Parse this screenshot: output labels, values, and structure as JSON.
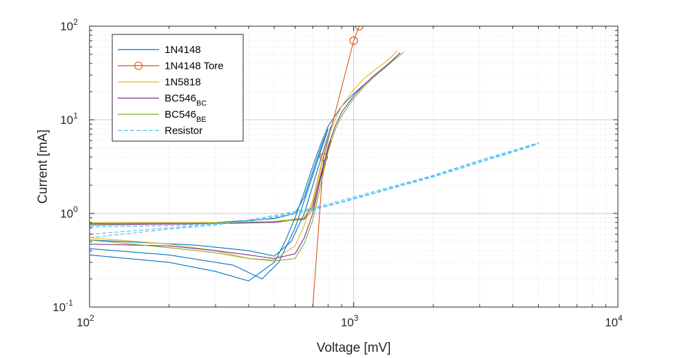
{
  "chart_data": {
    "type": "line",
    "xlabel": "Voltage [mV]",
    "ylabel": "Current [mA]",
    "xscale": "log",
    "yscale": "log",
    "xlim": [
      100,
      10000
    ],
    "ylim": [
      0.1,
      100
    ],
    "grid": "major and minor, dotted",
    "legend_position": "top-left",
    "x_ticks": [
      {
        "base": "10",
        "exp": "2"
      },
      {
        "base": "10",
        "exp": "3"
      },
      {
        "base": "10",
        "exp": "4"
      }
    ],
    "y_ticks": [
      {
        "base": "10",
        "exp": "-1"
      },
      {
        "base": "10",
        "exp": "0"
      },
      {
        "base": "10",
        "exp": "1"
      },
      {
        "base": "10",
        "exp": "2"
      }
    ],
    "series": [
      {
        "name": "1N4148",
        "label_main": "1N4148",
        "label_sub": "",
        "color": "#0072BD",
        "style": "solid",
        "marker": "none",
        "x": [
          100,
          200,
          300,
          400,
          500,
          550,
          600,
          650,
          700,
          750,
          800,
          900,
          1000,
          1100,
          1200,
          1300,
          1400,
          1500
        ],
        "y": [
          0.36,
          0.3,
          0.24,
          0.19,
          0.3,
          0.5,
          0.9,
          1.7,
          3.2,
          5.5,
          8.5,
          14,
          19,
          24,
          30,
          36,
          43,
          52
        ]
      },
      {
        "name": "1N4148 Tore",
        "label_main": "1N4148 Tore",
        "label_sub": "",
        "color": "#D95319",
        "style": "solid",
        "marker": "circle",
        "x": [
          700,
          770,
          1000,
          1050
        ],
        "y": [
          0.1,
          4,
          70,
          100
        ]
      },
      {
        "name": "1N5818",
        "label_main": "1N5818",
        "label_sub": "",
        "color": "#EDB120",
        "style": "solid",
        "marker": "none",
        "x": [
          100,
          200,
          300,
          400,
          500,
          600,
          650,
          700,
          750,
          800,
          850,
          900,
          1000,
          1100,
          1200,
          1300,
          1400,
          1460
        ],
        "y": [
          0.55,
          0.47,
          0.4,
          0.33,
          0.32,
          0.45,
          0.75,
          1.4,
          3.2,
          6.5,
          10,
          14,
          21,
          28,
          34,
          40,
          48,
          55
        ]
      },
      {
        "name": "BC546_BC",
        "label_main": "BC546",
        "label_sub": "BC",
        "color": "#7E2F8E",
        "style": "solid",
        "marker": "none",
        "x": [
          100,
          200,
          300,
          400,
          500,
          600,
          650,
          700,
          750,
          800,
          850,
          900,
          1000,
          1100,
          1200,
          1300,
          1400,
          1500
        ],
        "y": [
          0.47,
          0.45,
          0.4,
          0.36,
          0.33,
          0.37,
          0.55,
          1.0,
          2.4,
          5.2,
          8.5,
          12,
          18,
          24,
          30,
          36,
          43,
          52
        ]
      },
      {
        "name": "BC546_BE",
        "label_main": "BC546",
        "label_sub": "BE",
        "color": "#77AC30",
        "style": "solid",
        "marker": "none",
        "x": [
          100,
          200,
          300,
          400,
          500,
          600,
          650,
          700,
          750,
          800,
          850,
          900,
          1000,
          1100,
          1200,
          1300,
          1400,
          1550
        ],
        "y": [
          0.52,
          0.43,
          0.38,
          0.33,
          0.31,
          0.33,
          0.48,
          0.85,
          2.0,
          4.6,
          7.8,
          11,
          17,
          23,
          29,
          35,
          42,
          53
        ]
      },
      {
        "name": "Resistor",
        "label_main": "Resistor",
        "label_sub": "",
        "color": "#4DBEEE",
        "style": "dashed",
        "marker": "none",
        "x": [
          100,
          200,
          300,
          400,
          500,
          600,
          700,
          800,
          1000,
          1500,
          2000,
          3000,
          4000,
          5000
        ],
        "y": [
          0.6,
          0.7,
          0.77,
          0.83,
          0.92,
          1.02,
          1.12,
          1.22,
          1.45,
          2.0,
          2.5,
          3.6,
          4.6,
          5.6
        ]
      }
    ],
    "extra_traces": [
      {
        "color": "#0072BD",
        "style": "solid",
        "x": [
          100,
          300,
          500,
          600,
          650,
          700,
          750,
          800
        ],
        "y": [
          0.78,
          0.8,
          0.88,
          1.0,
          1.5,
          2.8,
          5.0,
          8.0
        ]
      },
      {
        "color": "#0072BD",
        "style": "solid",
        "x": [
          100,
          200,
          350,
          450,
          520,
          600,
          680,
          800
        ],
        "y": [
          0.42,
          0.36,
          0.28,
          0.2,
          0.3,
          0.7,
          2.0,
          8.0
        ]
      },
      {
        "color": "#0072BD",
        "style": "solid",
        "x": [
          100,
          250,
          400,
          500,
          580,
          650,
          720,
          820
        ],
        "y": [
          0.52,
          0.46,
          0.4,
          0.35,
          0.5,
          1.0,
          2.6,
          8.5
        ]
      },
      {
        "color": "#EDB120",
        "style": "solid",
        "x": [
          100,
          300,
          500,
          650,
          700,
          760,
          800
        ],
        "y": [
          0.8,
          0.8,
          0.82,
          0.9,
          1.3,
          3.5,
          6.5
        ]
      },
      {
        "color": "#7E2F8E",
        "style": "solid",
        "x": [
          100,
          300,
          500,
          650,
          700,
          760,
          820
        ],
        "y": [
          0.75,
          0.78,
          0.8,
          0.88,
          1.2,
          3.0,
          6.0
        ]
      },
      {
        "color": "#77AC30",
        "style": "solid",
        "x": [
          100,
          300,
          500,
          650,
          700,
          760,
          820
        ],
        "y": [
          0.77,
          0.79,
          0.82,
          0.86,
          1.1,
          2.7,
          5.8
        ]
      },
      {
        "color": "#4DBEEE",
        "style": "dashed",
        "x": [
          100,
          200,
          300,
          400,
          500,
          600,
          700,
          800,
          1000,
          2000,
          3000,
          4000,
          5000
        ],
        "y": [
          0.72,
          0.74,
          0.78,
          0.82,
          0.9,
          1.0,
          1.1,
          1.2,
          1.42,
          2.45,
          3.5,
          4.5,
          5.5
        ]
      },
      {
        "color": "#4DBEEE",
        "style": "dashed",
        "x": [
          100,
          200,
          300,
          400,
          500,
          600,
          700,
          800,
          1000,
          2000,
          3000,
          4000,
          5000
        ],
        "y": [
          0.55,
          0.68,
          0.75,
          0.85,
          0.95,
          1.05,
          1.15,
          1.26,
          1.5,
          2.55,
          3.7,
          4.7,
          5.7
        ]
      }
    ]
  }
}
